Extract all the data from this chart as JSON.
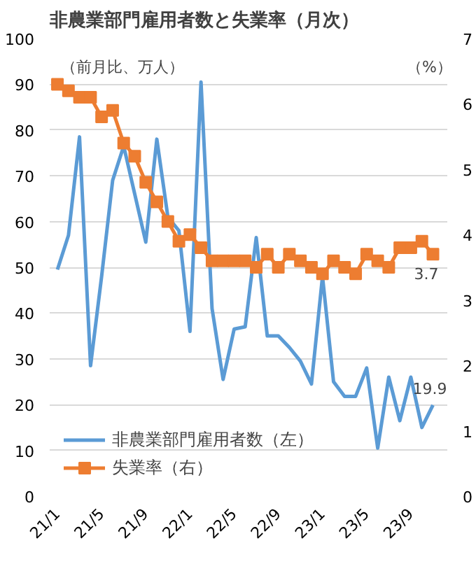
{
  "chart_data": {
    "type": "line",
    "title": "非農業部門雇用者数と失業率（月次）",
    "ylabel": "（前月比、万人）",
    "y2label": "（%）",
    "categories": [
      "21/1",
      null,
      null,
      null,
      "21/5",
      null,
      null,
      null,
      "21/9",
      null,
      null,
      null,
      "22/1",
      null,
      null,
      null,
      "22/5",
      null,
      null,
      null,
      "22/9",
      null,
      null,
      null,
      "23/1",
      null,
      null,
      null,
      "23/5",
      null,
      null,
      null,
      "23/9",
      null,
      null
    ],
    "series": [
      {
        "name": "非農業部門雇用者数（左）",
        "color": "#5b9bd5",
        "marker": "none",
        "values": [
          49.5,
          57,
          78.5,
          28.5,
          48,
          69,
          76.5,
          66,
          55.5,
          78,
          61,
          58,
          36,
          90.5,
          41,
          25.5,
          36.5,
          37,
          56.5,
          35,
          35,
          32.5,
          29.5,
          24.5,
          48,
          25,
          21.8,
          21.8,
          28,
          10.5,
          26,
          16.5,
          26,
          15,
          19.9
        ],
        "value_labels": [
          null,
          null,
          null,
          null,
          null,
          null,
          null,
          null,
          null,
          null,
          null,
          null,
          null,
          null,
          null,
          null,
          null,
          null,
          null,
          null,
          null,
          null,
          null,
          null,
          null,
          null,
          null,
          null,
          null,
          null,
          null,
          null,
          null,
          null,
          "19.9"
        ]
      },
      {
        "name": "失業率（右）",
        "color": "#ed7d31",
        "marker": "square",
        "axis": "y2",
        "values": [
          6.3,
          6.2,
          6.1,
          6.1,
          5.8,
          5.9,
          5.4,
          5.2,
          4.8,
          4.5,
          4.2,
          3.9,
          4.0,
          3.8,
          3.6,
          3.6,
          3.6,
          3.6,
          3.5,
          3.7,
          3.5,
          3.7,
          3.6,
          3.5,
          3.4,
          3.6,
          3.5,
          3.4,
          3.7,
          3.6,
          3.5,
          3.8,
          3.8,
          3.9,
          3.7
        ],
        "value_labels": [
          null,
          null,
          null,
          null,
          null,
          null,
          null,
          null,
          null,
          null,
          null,
          null,
          null,
          null,
          null,
          null,
          null,
          null,
          null,
          null,
          null,
          null,
          null,
          null,
          null,
          null,
          null,
          null,
          null,
          null,
          null,
          null,
          null,
          null,
          "3.7"
        ]
      }
    ],
    "ylim": [
      0,
      100
    ],
    "yticks": [
      0,
      10,
      20,
      30,
      40,
      50,
      60,
      70,
      80,
      90,
      100
    ],
    "y2lim": [
      0,
      7
    ],
    "y2ticks": [
      0,
      1,
      2,
      3,
      4,
      5,
      6,
      7
    ],
    "grid": "y",
    "legend": "bottom left"
  }
}
